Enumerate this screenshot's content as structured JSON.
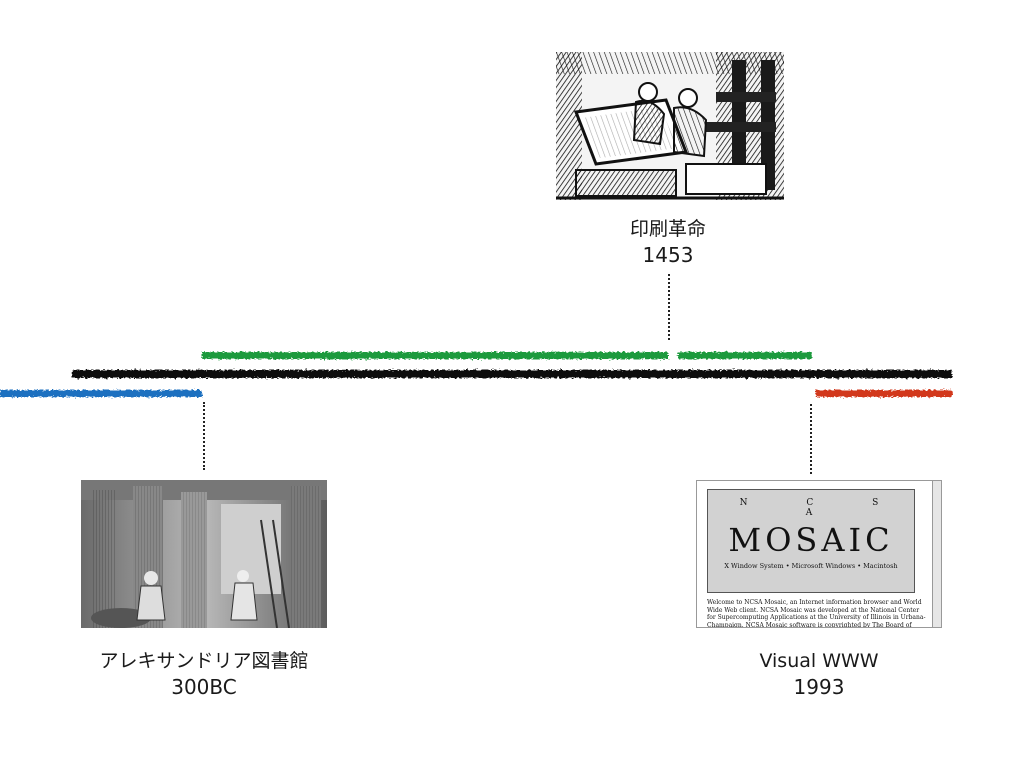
{
  "timeline": {
    "colors": {
      "main": "#111111",
      "left_segment": "#1f6fc0",
      "middle_segment": "#1e9a3c",
      "right_segment": "#d2381a"
    },
    "events": [
      {
        "label": "印刷革命",
        "year": "1453",
        "image": "printing-press-woodcut"
      },
      {
        "label": "アレキサンドリア図書館",
        "year": "300BC",
        "image": "library-of-alexandria-engraving"
      },
      {
        "label": "Visual WWW",
        "year": "1993",
        "image": "ncsa-mosaic-screenshot"
      }
    ],
    "mosaic_screenshot": {
      "letters": "N C S A",
      "title": "MOSAIC",
      "platforms": "X Window System • Microsoft Windows • Macintosh",
      "body": "Welcome to NCSA Mosaic, an Internet information browser and World Wide Web client. NCSA Mosaic was developed at the National Center for Supercomputing Applications at the University of Illinois in Urbana-Champaign. NCSA Mosaic software is copyrighted by The Board of Trustees of the University of Illinois"
    }
  }
}
